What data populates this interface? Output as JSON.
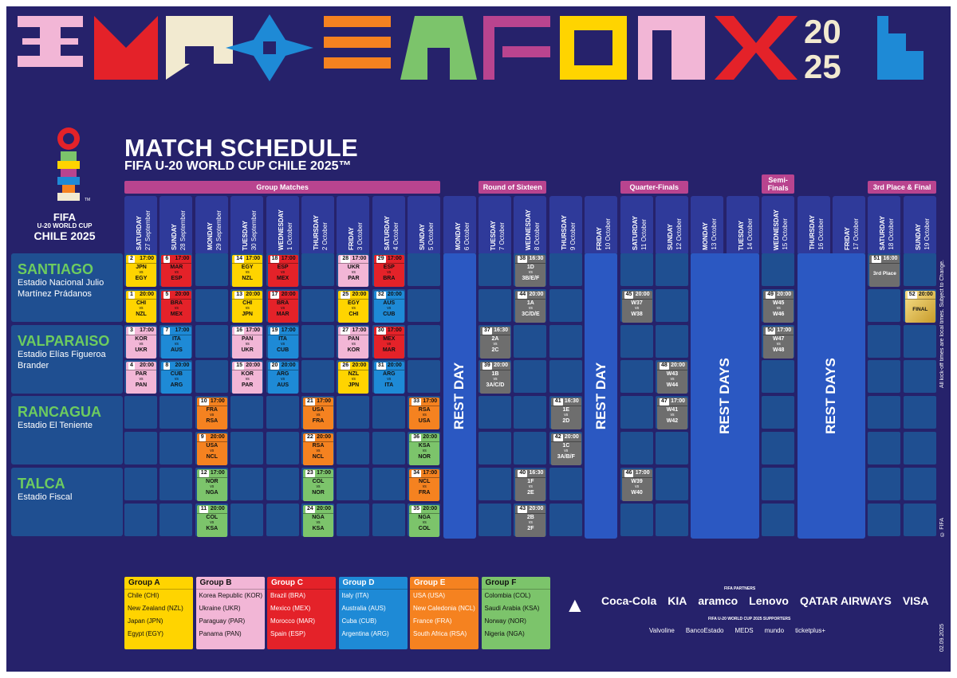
{
  "title": "MATCH SCHEDULE",
  "subtitle": "FIFA U-20 WORLD CUP CHILE 2025™",
  "logo": {
    "l1": "FIFA",
    "l2": "U-20 WORLD CUP",
    "l3": "CHILE 2025",
    "tm": "TM"
  },
  "stages": [
    {
      "label": "Group Matches",
      "c0": 0,
      "c1": 8
    },
    {
      "label": "Round of Sixteen",
      "c0": 10,
      "c1": 11
    },
    {
      "label": "Quarter-Finals",
      "c0": 14,
      "c1": 15
    },
    {
      "label": "Semi-Finals",
      "c0": 18,
      "c1": 18,
      "small": true
    },
    {
      "label": "3rd Place & Final",
      "c0": 21,
      "c1": 22
    }
  ],
  "days": [
    {
      "w": "SATURDAY",
      "d": "27 September"
    },
    {
      "w": "SUNDAY",
      "d": "28 September"
    },
    {
      "w": "MONDAY",
      "d": "29 September"
    },
    {
      "w": "TUESDAY",
      "d": "30 September"
    },
    {
      "w": "WEDNESDAY",
      "d": "1 October"
    },
    {
      "w": "THURSDAY",
      "d": "2 October"
    },
    {
      "w": "FRIDAY",
      "d": "3 October"
    },
    {
      "w": "SATURDAY",
      "d": "4 October"
    },
    {
      "w": "SUNDAY",
      "d": "5 October"
    },
    {
      "w": "MONDAY",
      "d": "6 October"
    },
    {
      "w": "TUESDAY",
      "d": "7 October"
    },
    {
      "w": "WEDNESDAY",
      "d": "8 October"
    },
    {
      "w": "THURSDAY",
      "d": "9 October"
    },
    {
      "w": "FRIDAY",
      "d": "10 October"
    },
    {
      "w": "SATURDAY",
      "d": "11 October"
    },
    {
      "w": "SUNDAY",
      "d": "12 October"
    },
    {
      "w": "MONDAY",
      "d": "13 October"
    },
    {
      "w": "TUESDAY",
      "d": "14 October"
    },
    {
      "w": "WEDNESDAY",
      "d": "15 October"
    },
    {
      "w": "THURSDAY",
      "d": "16 October"
    },
    {
      "w": "FRIDAY",
      "d": "17 October"
    },
    {
      "w": "SATURDAY",
      "d": "18 October"
    },
    {
      "w": "SUNDAY",
      "d": "19 October"
    }
  ],
  "venues": [
    {
      "name": "SANTIAGO",
      "stadium": "Estadio Nacional Julio Martínez Prádanos"
    },
    {
      "name": "VALPARAISO",
      "stadium": "Estadio Elías Figueroa Brander"
    },
    {
      "name": "RANCAGUA",
      "stadium": "Estadio El Teniente"
    },
    {
      "name": "TALCA",
      "stadium": "Estadio Fiscal"
    }
  ],
  "rest": [
    {
      "label": "REST DAY",
      "c0": 9,
      "c1": 9
    },
    {
      "label": "REST DAY",
      "c0": 13,
      "c1": 13
    },
    {
      "label": "REST DAYS",
      "c0": 16,
      "c1": 17
    },
    {
      "label": "REST DAYS",
      "c0": 19,
      "c1": 20
    }
  ],
  "vs": "vs",
  "matches": [
    {
      "n": "2",
      "t": "17:00",
      "a": "JPN",
      "b": "EGY",
      "c": 0,
      "r": 0,
      "g": "A"
    },
    {
      "n": "6",
      "t": "17:00",
      "a": "MAR",
      "b": "ESP",
      "c": 1,
      "r": 0,
      "g": "C"
    },
    {
      "n": "14",
      "t": "17:00",
      "a": "EGY",
      "b": "NZL",
      "c": 3,
      "r": 0,
      "g": "A"
    },
    {
      "n": "18",
      "t": "17:00",
      "a": "ESP",
      "b": "MEX",
      "c": 4,
      "r": 0,
      "g": "C"
    },
    {
      "n": "28",
      "t": "17:00",
      "a": "UKR",
      "b": "PAR",
      "c": 6,
      "r": 0,
      "g": "B"
    },
    {
      "n": "29",
      "t": "17:00",
      "a": "ESP",
      "b": "BRA",
      "c": 7,
      "r": 0,
      "g": "C"
    },
    {
      "n": "38",
      "t": "16:30",
      "a": "1D",
      "b": "3B/E/F",
      "c": 11,
      "r": 0,
      "g": "X"
    },
    {
      "n": "51",
      "t": "16:00",
      "a": "3rd Place",
      "b": "",
      "c": 21,
      "r": 0,
      "g": "X"
    },
    {
      "n": "1",
      "t": "20:00",
      "a": "CHI",
      "b": "NZL",
      "c": 0,
      "r": 1,
      "g": "A"
    },
    {
      "n": "5",
      "t": "20:00",
      "a": "BRA",
      "b": "MEX",
      "c": 1,
      "r": 1,
      "g": "C"
    },
    {
      "n": "13",
      "t": "20:00",
      "a": "CHI",
      "b": "JPN",
      "c": 3,
      "r": 1,
      "g": "A"
    },
    {
      "n": "17",
      "t": "20:00",
      "a": "BRA",
      "b": "MAR",
      "c": 4,
      "r": 1,
      "g": "C"
    },
    {
      "n": "25",
      "t": "20:00",
      "a": "EGY",
      "b": "CHI",
      "c": 6,
      "r": 1,
      "g": "A"
    },
    {
      "n": "32",
      "t": "20:00",
      "a": "AUS",
      "b": "CUB",
      "c": 7,
      "r": 1,
      "g": "D"
    },
    {
      "n": "44",
      "t": "20:00",
      "a": "1A",
      "b": "3C/D/E",
      "c": 11,
      "r": 1,
      "g": "X"
    },
    {
      "n": "45",
      "t": "20:00",
      "a": "W37",
      "b": "W38",
      "c": 14,
      "r": 1,
      "g": "X"
    },
    {
      "n": "49",
      "t": "20:00",
      "a": "W45",
      "b": "W46",
      "c": 18,
      "r": 1,
      "g": "X"
    },
    {
      "n": "52",
      "t": "20:00",
      "a": "FINAL",
      "b": "",
      "c": 22,
      "r": 1,
      "g": "F"
    },
    {
      "n": "3",
      "t": "17:00",
      "a": "KOR",
      "b": "UKR",
      "c": 0,
      "r": 2,
      "g": "B"
    },
    {
      "n": "7",
      "t": "17:00",
      "a": "ITA",
      "b": "AUS",
      "c": 1,
      "r": 2,
      "g": "D"
    },
    {
      "n": "16",
      "t": "17:00",
      "a": "PAN",
      "b": "UKR",
      "c": 3,
      "r": 2,
      "g": "B"
    },
    {
      "n": "19",
      "t": "17:00",
      "a": "ITA",
      "b": "CUB",
      "c": 4,
      "r": 2,
      "g": "D"
    },
    {
      "n": "27",
      "t": "17:00",
      "a": "PAN",
      "b": "KOR",
      "c": 6,
      "r": 2,
      "g": "B"
    },
    {
      "n": "30",
      "t": "17:00",
      "a": "MEX",
      "b": "MAR",
      "c": 7,
      "r": 2,
      "g": "C"
    },
    {
      "n": "37",
      "t": "16:30",
      "a": "2A",
      "b": "2C",
      "c": 10,
      "r": 2,
      "g": "X"
    },
    {
      "n": "50",
      "t": "17:00",
      "a": "W47",
      "b": "W48",
      "c": 18,
      "r": 2,
      "g": "X"
    },
    {
      "n": "4",
      "t": "20:00",
      "a": "PAR",
      "b": "PAN",
      "c": 0,
      "r": 3,
      "g": "B"
    },
    {
      "n": "8",
      "t": "20:00",
      "a": "CUB",
      "b": "ARG",
      "c": 1,
      "r": 3,
      "g": "D"
    },
    {
      "n": "15",
      "t": "20:00",
      "a": "KOR",
      "b": "PAR",
      "c": 3,
      "r": 3,
      "g": "B"
    },
    {
      "n": "20",
      "t": "20:00",
      "a": "ARG",
      "b": "AUS",
      "c": 4,
      "r": 3,
      "g": "D"
    },
    {
      "n": "26",
      "t": "20:00",
      "a": "NZL",
      "b": "JPN",
      "c": 6,
      "r": 3,
      "g": "A"
    },
    {
      "n": "31",
      "t": "20:00",
      "a": "ARG",
      "b": "ITA",
      "c": 7,
      "r": 3,
      "g": "D"
    },
    {
      "n": "39",
      "t": "20:00",
      "a": "1B",
      "b": "3A/C/D",
      "c": 10,
      "r": 3,
      "g": "X"
    },
    {
      "n": "48",
      "t": "20:00",
      "a": "W43",
      "b": "W44",
      "c": 15,
      "r": 3,
      "g": "X"
    },
    {
      "n": "10",
      "t": "17:00",
      "a": "FRA",
      "b": "RSA",
      "c": 2,
      "r": 4,
      "g": "E"
    },
    {
      "n": "21",
      "t": "17:00",
      "a": "USA",
      "b": "FRA",
      "c": 5,
      "r": 4,
      "g": "E"
    },
    {
      "n": "33",
      "t": "17:00",
      "a": "RSA",
      "b": "USA",
      "c": 8,
      "r": 4,
      "g": "E"
    },
    {
      "n": "41",
      "t": "16:30",
      "a": "1E",
      "b": "2D",
      "c": 12,
      "r": 4,
      "g": "X"
    },
    {
      "n": "47",
      "t": "17:00",
      "a": "W41",
      "b": "W42",
      "c": 15,
      "r": 4,
      "g": "X"
    },
    {
      "n": "9",
      "t": "20:00",
      "a": "USA",
      "b": "NCL",
      "c": 2,
      "r": 5,
      "g": "E"
    },
    {
      "n": "22",
      "t": "20:00",
      "a": "RSA",
      "b": "NCL",
      "c": 5,
      "r": 5,
      "g": "E"
    },
    {
      "n": "36",
      "t": "20:00",
      "a": "KSA",
      "b": "NOR",
      "c": 8,
      "r": 5,
      "g": "F"
    },
    {
      "n": "42",
      "t": "20:00",
      "a": "1C",
      "b": "3A/B/F",
      "c": 12,
      "r": 5,
      "g": "X"
    },
    {
      "n": "12",
      "t": "17:00",
      "a": "NOR",
      "b": "NGA",
      "c": 2,
      "r": 6,
      "g": "F"
    },
    {
      "n": "23",
      "t": "17:00",
      "a": "COL",
      "b": "NOR",
      "c": 5,
      "r": 6,
      "g": "F"
    },
    {
      "n": "34",
      "t": "17:00",
      "a": "NCL",
      "b": "FRA",
      "c": 8,
      "r": 6,
      "g": "E"
    },
    {
      "n": "40",
      "t": "16:30",
      "a": "1F",
      "b": "2E",
      "c": 11,
      "r": 6,
      "g": "X"
    },
    {
      "n": "46",
      "t": "17:00",
      "a": "W39",
      "b": "W40",
      "c": 14,
      "r": 6,
      "g": "X"
    },
    {
      "n": "11",
      "t": "20:00",
      "a": "COL",
      "b": "KSA",
      "c": 2,
      "r": 7,
      "g": "F"
    },
    {
      "n": "24",
      "t": "20:00",
      "a": "NGA",
      "b": "KSA",
      "c": 5,
      "r": 7,
      "g": "F"
    },
    {
      "n": "35",
      "t": "20:00",
      "a": "NGA",
      "b": "COL",
      "c": 8,
      "r": 7,
      "g": "F"
    },
    {
      "n": "43",
      "t": "20:00",
      "a": "2B",
      "b": "2F",
      "c": 11,
      "r": 7,
      "g": "X"
    }
  ],
  "groups": [
    {
      "name": "Group A",
      "g": "A",
      "teams": [
        "Chile (CHI)",
        "New Zealand (NZL)",
        "Japan (JPN)",
        "Egypt (EGY)"
      ]
    },
    {
      "name": "Group B",
      "g": "B",
      "teams": [
        "Korea Republic (KOR)",
        "Ukraine (UKR)",
        "Paraguay (PAR)",
        "Panama (PAN)"
      ]
    },
    {
      "name": "Group C",
      "g": "C",
      "teams": [
        "Brazil (BRA)",
        "Mexico (MEX)",
        "Morocco (MAR)",
        "Spain (ESP)"
      ]
    },
    {
      "name": "Group D",
      "g": "D",
      "teams": [
        "Italy (ITA)",
        "Australia (AUS)",
        "Cuba (CUB)",
        "Argentina (ARG)"
      ]
    },
    {
      "name": "Group E",
      "g": "E",
      "teams": [
        "USA (USA)",
        "New Caledonia (NCL)",
        "France (FRA)",
        "South Africa (RSA)"
      ]
    },
    {
      "name": "Group F",
      "g": "F",
      "teams": [
        "Colombia (COL)",
        "Saudi Arabia (KSA)",
        "Norway (NOR)",
        "Nigeria (NGA)"
      ]
    }
  ],
  "colors": {
    "A": "#ffd400",
    "B": "#f2b6d6",
    "C": "#e42229",
    "D": "#1e8ad6",
    "E": "#f58220",
    "F": "#7cc46b",
    "X": "#6e6e6e"
  },
  "sponsors": {
    "partners_label": "FIFA PARTNERS",
    "partners": [
      "Coca-Cola",
      "KIA",
      "aramco",
      "Lenovo",
      "QATAR AIRWAYS",
      "VISA"
    ],
    "supporters_label": "FIFA U-20 WORLD CUP 2025 SUPPORTERS",
    "supporters": [
      "Valvoline",
      "BancoEstado",
      "MEDS",
      "mundo",
      "ticketplus+"
    ]
  },
  "side_note": "All kick-off times are local times. Subject to Change.",
  "copyright": "© FIFA",
  "date_stamp": "02.09.2025"
}
